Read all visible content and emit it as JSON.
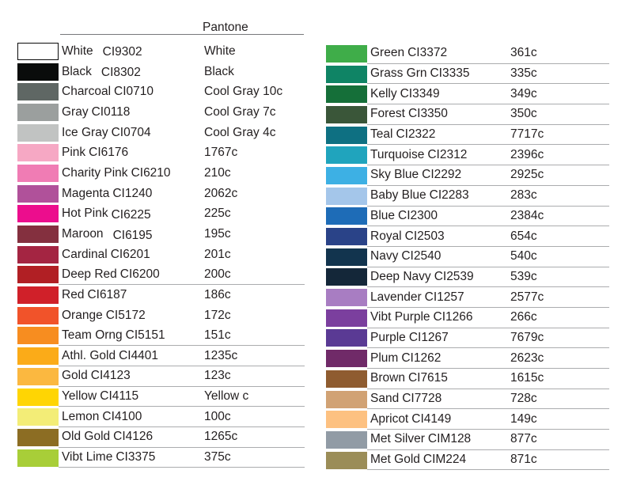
{
  "header": {
    "pantone_label": "Pantone"
  },
  "colors": {
    "text": "#231f20",
    "row_line": "#abacae",
    "header_line": "#77787b",
    "background": "#ffffff"
  },
  "columns": [
    {
      "rows": [
        {
          "name": "White",
          "code": "CI9302",
          "pantone": "White",
          "swatch": "#ffffff",
          "swatch_border": "#0b0b0b",
          "underline": false,
          "wide_gap": true,
          "code_shift": true
        },
        {
          "name": "Black",
          "code": "CI8302",
          "pantone": "Black",
          "swatch": "#0a0c0b",
          "underline": false,
          "wide_gap": true,
          "code_shift": true
        },
        {
          "name": "Charcoal",
          "code": "CI0710",
          "pantone": "Cool Gray 10c",
          "swatch": "#5f6764",
          "underline": false
        },
        {
          "name": "Gray",
          "code": "CI0118",
          "pantone": "Cool Gray 7c",
          "swatch": "#9b9f9e",
          "underline": false
        },
        {
          "name": "Ice Gray",
          "code": "CI0704",
          "pantone": "Cool Gray 4c",
          "swatch": "#c1c3c2",
          "underline": false
        },
        {
          "name": "Pink",
          "code": "CI6176",
          "pantone": "1767c",
          "swatch": "#f6a8c4",
          "underline": false
        },
        {
          "name": "Charity Pink",
          "code": "CI6210",
          "pantone": "210c",
          "swatch": "#f07cb4",
          "underline": false
        },
        {
          "name": "Magenta",
          "code": "CI1240",
          "pantone": "2062c",
          "swatch": "#b0519a",
          "underline": false
        },
        {
          "name": "Hot Pink",
          "code": "CI6225",
          "pantone": "225c",
          "swatch": "#ec0d8d",
          "underline": false,
          "code_shift": true
        },
        {
          "name": "Maroon",
          "code": "CI6195",
          "pantone": "195c",
          "swatch": "#84303f",
          "underline": false,
          "wide_gap": true,
          "code_shift": true
        },
        {
          "name": "Cardinal",
          "code": "CI6201",
          "pantone": "201c",
          "swatch": "#a42542",
          "underline": false
        },
        {
          "name": "Deep Red",
          "code": "CI6200",
          "pantone": "200c",
          "swatch": "#b11f24",
          "underline": true
        },
        {
          "name": "Red",
          "code": "CI6187",
          "pantone": "186c",
          "swatch": "#d02029",
          "underline": false
        },
        {
          "name": "Orange",
          "code": "CI5172",
          "pantone": "172c",
          "swatch": "#f1532a",
          "underline": false
        },
        {
          "name": "Team Orng",
          "code": "CI5151",
          "pantone": "151c",
          "swatch": "#f78d20",
          "underline": true
        },
        {
          "name": "Athl. Gold",
          "code": "CI4401",
          "pantone": "1235c",
          "swatch": "#fbab18",
          "underline": true
        },
        {
          "name": "Gold",
          "code": "CI4123",
          "pantone": "123c",
          "swatch": "#fbb840",
          "underline": true
        },
        {
          "name": "Yellow",
          "code": "CI4115",
          "pantone": "Yellow c",
          "swatch": "#ffd503",
          "underline": true
        },
        {
          "name": "Lemon",
          "code": "CI4100",
          "pantone": "100c",
          "swatch": "#f3ed77",
          "underline": true
        },
        {
          "name": "Old Gold",
          "code": "CI4126",
          "pantone": "1265c",
          "swatch": "#8c6d23",
          "underline": true
        },
        {
          "name": "Vibt Lime",
          "code": "CI3375",
          "pantone": "375c",
          "swatch": "#a8ce38",
          "underline": true
        }
      ]
    },
    {
      "rows": [
        {
          "name": "Green",
          "code": "CI3372",
          "pantone": "361c",
          "swatch": "#3fad49",
          "underline": true
        },
        {
          "name": "Grass Grn",
          "code": "CI3335",
          "pantone": "335c",
          "swatch": "#0f8465",
          "underline": true
        },
        {
          "name": "Kelly",
          "code": "CI3349",
          "pantone": "349c",
          "swatch": "#156f39",
          "underline": true
        },
        {
          "name": "Forest",
          "code": "CI3350",
          "pantone": "350c",
          "swatch": "#3a5639",
          "underline": true
        },
        {
          "name": "Teal",
          "code": "CI2322",
          "pantone": "7717c",
          "swatch": "#0e7082",
          "underline": true
        },
        {
          "name": "Turquoise",
          "code": "CI2312",
          "pantone": "2396c",
          "swatch": "#20a4bd",
          "underline": true
        },
        {
          "name": "Sky Blue",
          "code": "CI2292",
          "pantone": "2925c",
          "swatch": "#3db0e4",
          "underline": true
        },
        {
          "name": "Baby Blue",
          "code": "CI2283",
          "pantone": "283c",
          "swatch": "#a4c6ea",
          "underline": true
        },
        {
          "name": "Blue",
          "code": "CI2300",
          "pantone": "2384c",
          "swatch": "#1e6cb7",
          "underline": true
        },
        {
          "name": "Royal",
          "code": "CI2503",
          "pantone": "654c",
          "swatch": "#2a4388",
          "underline": true
        },
        {
          "name": "Navy",
          "code": "CI2540",
          "pantone": "540c",
          "swatch": "#12344e",
          "underline": true
        },
        {
          "name": "Deep Navy",
          "code": "CI2539",
          "pantone": "539c",
          "swatch": "#142739",
          "underline": true
        },
        {
          "name": "Lavender",
          "code": "CI1257",
          "pantone": "2577c",
          "swatch": "#a87dc2",
          "underline": true
        },
        {
          "name": "Vibt Purple",
          "code": "CI1266",
          "pantone": "266c",
          "swatch": "#7b3f9e",
          "underline": true
        },
        {
          "name": "Purple",
          "code": "CI1267",
          "pantone": "7679c",
          "swatch": "#5a3a94",
          "underline": true
        },
        {
          "name": "Plum",
          "code": "CI1262",
          "pantone": "2623c",
          "swatch": "#702a68",
          "underline": true
        },
        {
          "name": "Brown",
          "code": "CI7615",
          "pantone": "1615c",
          "swatch": "#8f5c30",
          "underline": true
        },
        {
          "name": "Sand",
          "code": "CI7728",
          "pantone": "728c",
          "swatch": "#d1a274",
          "underline": true
        },
        {
          "name": "Apricot",
          "code": "CI4149",
          "pantone": "149c",
          "swatch": "#fdc181",
          "underline": true
        },
        {
          "name": "Met Silver",
          "code": "CIM128",
          "pantone": "877c",
          "swatch": "#919ba5",
          "underline": true
        },
        {
          "name": "Met Gold",
          "code": "CIM224",
          "pantone": "871c",
          "swatch": "#9b8d58",
          "underline": true
        }
      ]
    }
  ]
}
